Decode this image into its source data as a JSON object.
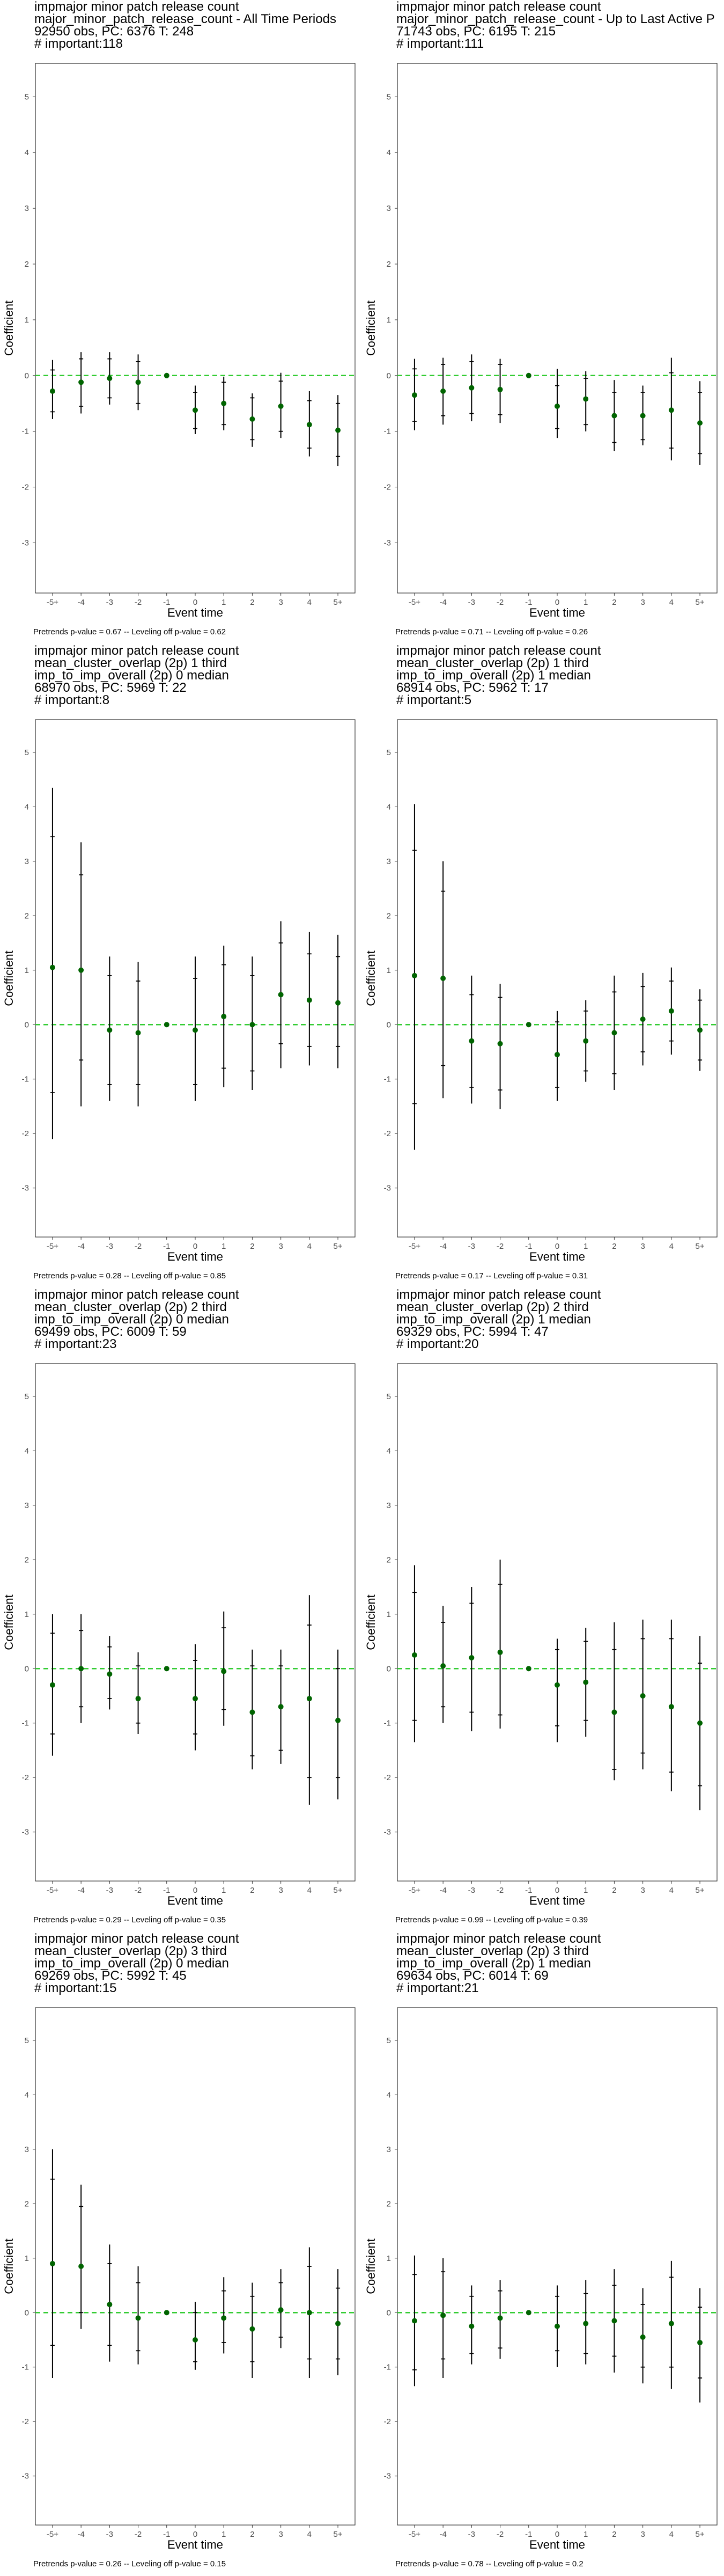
{
  "chart_data": [
    {
      "type": "scatter",
      "title": [
        "impmajor minor patch release count",
        "major_minor_patch_release_count - All Time Periods",
        "92950 obs, PC: 6376 T: 248",
        "# important:118"
      ],
      "xlabel": "Event time",
      "ylabel": "Coefficient",
      "caption": "Pretrends p-value = 0.67 -- Leveling off p-value = 0.62",
      "categories": [
        "-5+",
        "-4",
        "-3",
        "-2",
        "-1",
        "0",
        "1",
        "2",
        "3",
        "4",
        "5+"
      ],
      "estimate": [
        -0.28,
        -0.12,
        -0.05,
        -0.12,
        0.0,
        -0.62,
        -0.5,
        -0.78,
        -0.55,
        -0.88,
        -0.98
      ],
      "ci95_low": [
        -0.78,
        -0.68,
        -0.52,
        -0.62,
        0.0,
        -1.05,
        -0.98,
        -1.28,
        -1.12,
        -1.45,
        -1.62
      ],
      "ci95_high": [
        0.28,
        0.42,
        0.42,
        0.38,
        0.0,
        -0.18,
        -0.02,
        -0.32,
        0.05,
        -0.28,
        -0.35
      ],
      "ci_low": [
        -0.65,
        -0.55,
        -0.4,
        -0.5,
        0.0,
        -0.95,
        -0.88,
        -1.15,
        -1.0,
        -1.3,
        -1.45
      ],
      "ci_high": [
        0.1,
        0.3,
        0.3,
        0.25,
        0.0,
        -0.3,
        -0.12,
        -0.4,
        -0.1,
        -0.45,
        -0.5
      ],
      "ylim": [
        -3.9,
        5.6
      ],
      "yticks": [
        -3,
        -2,
        -1,
        0,
        1,
        2,
        3,
        4,
        5
      ],
      "reference_line": 0
    },
    {
      "type": "scatter",
      "title": [
        "impmajor minor patch release count",
        "major_minor_patch_release_count - Up to Last Active P",
        "71743 obs, PC: 6195 T: 215",
        "# important:111"
      ],
      "xlabel": "Event time",
      "ylabel": "Coefficient",
      "caption": "Pretrends p-value = 0.71 -- Leveling off p-value = 0.26",
      "categories": [
        "-5+",
        "-4",
        "-3",
        "-2",
        "-1",
        "0",
        "1",
        "2",
        "3",
        "4",
        "5+"
      ],
      "estimate": [
        -0.35,
        -0.28,
        -0.22,
        -0.25,
        0.0,
        -0.55,
        -0.42,
        -0.72,
        -0.72,
        -0.62,
        -0.85
      ],
      "ci95_low": [
        -0.98,
        -0.88,
        -0.82,
        -0.85,
        0.0,
        -1.12,
        -1.0,
        -1.35,
        -1.25,
        -1.52,
        -1.6
      ],
      "ci95_high": [
        0.3,
        0.32,
        0.38,
        0.3,
        0.0,
        0.12,
        0.08,
        -0.08,
        -0.18,
        0.32,
        -0.1
      ],
      "ci_low": [
        -0.82,
        -0.72,
        -0.68,
        -0.7,
        0.0,
        -0.95,
        -0.88,
        -1.2,
        -1.15,
        -1.3,
        -1.4
      ],
      "ci_high": [
        0.12,
        0.2,
        0.25,
        0.2,
        0.0,
        -0.18,
        -0.05,
        -0.3,
        -0.3,
        0.05,
        -0.3
      ],
      "ylim": [
        -3.9,
        5.6
      ],
      "yticks": [
        -3,
        -2,
        -1,
        0,
        1,
        2,
        3,
        4,
        5
      ],
      "reference_line": 0
    },
    {
      "type": "scatter",
      "title": [
        "impmajor minor patch release count",
        "mean_cluster_overlap (2p) 1 third",
        "imp_to_imp_overall (2p) 0 median",
        "68970 obs, PC: 5969 T: 22",
        "# important:8"
      ],
      "xlabel": "Event time",
      "ylabel": "Coefficient",
      "caption": "Pretrends p-value = 0.28 -- Leveling off p-value = 0.85",
      "categories": [
        "-5+",
        "-4",
        "-3",
        "-2",
        "-1",
        "0",
        "1",
        "2",
        "3",
        "4",
        "5+"
      ],
      "estimate": [
        1.05,
        1.0,
        -0.1,
        -0.15,
        0.0,
        -0.1,
        0.15,
        0.0,
        0.55,
        0.45,
        0.4
      ],
      "ci95_low": [
        -2.1,
        -1.5,
        -1.4,
        -1.5,
        0.0,
        -1.4,
        -1.15,
        -1.2,
        -0.8,
        -0.75,
        -0.8
      ],
      "ci95_high": [
        4.35,
        3.35,
        1.25,
        1.15,
        0.0,
        1.25,
        1.45,
        1.25,
        1.9,
        1.7,
        1.65
      ],
      "ci_low": [
        -1.25,
        -0.65,
        -1.1,
        -1.1,
        0.0,
        -1.1,
        -0.8,
        -0.85,
        -0.35,
        -0.4,
        -0.4
      ],
      "ci_high": [
        3.45,
        2.75,
        0.9,
        0.8,
        0.0,
        0.85,
        1.1,
        0.9,
        1.5,
        1.3,
        1.25
      ],
      "ylim": [
        -3.9,
        5.6
      ],
      "yticks": [
        -3,
        -2,
        -1,
        0,
        1,
        2,
        3,
        4,
        5
      ],
      "reference_line": 0
    },
    {
      "type": "scatter",
      "title": [
        "impmajor minor patch release count",
        "mean_cluster_overlap (2p) 1 third",
        "imp_to_imp_overall (2p) 1 median",
        "68914 obs, PC: 5962 T: 17",
        "# important:5"
      ],
      "xlabel": "Event time",
      "ylabel": "Coefficient",
      "caption": "Pretrends p-value = 0.17 -- Leveling off p-value = 0.31",
      "categories": [
        "-5+",
        "-4",
        "-3",
        "-2",
        "-1",
        "0",
        "1",
        "2",
        "3",
        "4",
        "5+"
      ],
      "estimate": [
        0.9,
        0.85,
        -0.3,
        -0.35,
        0.0,
        -0.55,
        -0.3,
        -0.15,
        0.1,
        0.25,
        -0.1
      ],
      "ci95_low": [
        -2.3,
        -1.35,
        -1.45,
        -1.55,
        0.0,
        -1.4,
        -1.05,
        -1.2,
        -0.75,
        -0.55,
        -0.85
      ],
      "ci95_high": [
        4.05,
        3.0,
        0.9,
        0.75,
        0.0,
        0.25,
        0.45,
        0.9,
        0.95,
        1.05,
        0.65
      ],
      "ci_low": [
        -1.45,
        -0.75,
        -1.15,
        -1.2,
        0.0,
        -1.15,
        -0.85,
        -0.9,
        -0.5,
        -0.3,
        -0.65
      ],
      "ci_high": [
        3.2,
        2.45,
        0.55,
        0.5,
        0.0,
        0.05,
        0.25,
        0.6,
        0.7,
        0.8,
        0.45
      ],
      "ylim": [
        -3.9,
        5.6
      ],
      "yticks": [
        -3,
        -2,
        -1,
        0,
        1,
        2,
        3,
        4,
        5
      ],
      "reference_line": 0
    },
    {
      "type": "scatter",
      "title": [
        "impmajor minor patch release count",
        "mean_cluster_overlap (2p) 2 third",
        "imp_to_imp_overall (2p) 0 median",
        "69499 obs, PC: 6009 T: 59",
        "# important:23"
      ],
      "xlabel": "Event time",
      "ylabel": "Coefficient",
      "caption": "Pretrends p-value = 0.29 -- Leveling off p-value = 0.35",
      "categories": [
        "-5+",
        "-4",
        "-3",
        "-2",
        "-1",
        "0",
        "1",
        "2",
        "3",
        "4",
        "5+"
      ],
      "estimate": [
        -0.3,
        0.0,
        -0.1,
        -0.55,
        0.0,
        -0.55,
        -0.05,
        -0.8,
        -0.7,
        -0.55,
        -0.95
      ],
      "ci95_low": [
        -1.6,
        -1.0,
        -0.75,
        -1.2,
        0.0,
        -1.5,
        -1.05,
        -1.85,
        -1.75,
        -2.5,
        -2.4
      ],
      "ci95_high": [
        1.0,
        1.0,
        0.6,
        0.3,
        0.0,
        0.45,
        1.05,
        0.35,
        0.35,
        1.35,
        0.35
      ],
      "ci_low": [
        -1.2,
        -0.7,
        -0.55,
        -1.0,
        0.0,
        -1.2,
        -0.75,
        -1.6,
        -1.5,
        -2.0,
        -2.0
      ],
      "ci_high": [
        0.65,
        0.7,
        0.4,
        0.05,
        0.0,
        0.15,
        0.75,
        0.05,
        0.05,
        0.8,
        0.0
      ],
      "ylim": [
        -3.9,
        5.6
      ],
      "yticks": [
        -3,
        -2,
        -1,
        0,
        1,
        2,
        3,
        4,
        5
      ],
      "reference_line": 0
    },
    {
      "type": "scatter",
      "title": [
        "impmajor minor patch release count",
        "mean_cluster_overlap (2p) 2 third",
        "imp_to_imp_overall (2p) 1 median",
        "69329 obs, PC: 5994 T: 47",
        "# important:20"
      ],
      "xlabel": "Event time",
      "ylabel": "Coefficient",
      "caption": "Pretrends p-value = 0.99 -- Leveling off p-value = 0.39",
      "categories": [
        "-5+",
        "-4",
        "-3",
        "-2",
        "-1",
        "0",
        "1",
        "2",
        "3",
        "4",
        "5+"
      ],
      "estimate": [
        0.25,
        0.05,
        0.2,
        0.3,
        0.0,
        -0.3,
        -0.25,
        -0.8,
        -0.5,
        -0.7,
        -1.0
      ],
      "ci95_low": [
        -1.35,
        -1.0,
        -1.15,
        -1.1,
        0.0,
        -1.35,
        -1.25,
        -2.05,
        -1.85,
        -2.25,
        -2.6
      ],
      "ci95_high": [
        1.9,
        1.15,
        1.5,
        2.0,
        0.0,
        0.55,
        0.75,
        0.85,
        0.9,
        0.9,
        0.6
      ],
      "ci_low": [
        -0.95,
        -0.7,
        -0.8,
        -0.85,
        0.0,
        -1.05,
        -0.95,
        -1.85,
        -1.55,
        -1.9,
        -2.15
      ],
      "ci_high": [
        1.4,
        0.85,
        1.2,
        1.55,
        0.0,
        0.35,
        0.5,
        0.35,
        0.55,
        0.55,
        0.1
      ],
      "ylim": [
        -3.9,
        5.6
      ],
      "yticks": [
        -3,
        -2,
        -1,
        0,
        1,
        2,
        3,
        4,
        5
      ],
      "reference_line": 0
    },
    {
      "type": "scatter",
      "title": [
        "impmajor minor patch release count",
        "mean_cluster_overlap (2p) 3 third",
        "imp_to_imp_overall (2p) 0 median",
        "69269 obs, PC: 5992 T: 45",
        "# important:15"
      ],
      "xlabel": "Event time",
      "ylabel": "Coefficient",
      "caption": "Pretrends p-value = 0.26 -- Leveling off p-value = 0.15",
      "categories": [
        "-5+",
        "-4",
        "-3",
        "-2",
        "-1",
        "0",
        "1",
        "2",
        "3",
        "4",
        "5+"
      ],
      "estimate": [
        0.9,
        0.85,
        0.15,
        -0.1,
        0.0,
        -0.5,
        -0.1,
        -0.3,
        0.05,
        0.0,
        -0.2
      ],
      "ci95_low": [
        -1.2,
        -0.3,
        -0.9,
        -0.95,
        0.0,
        -1.05,
        -0.75,
        -1.2,
        -0.65,
        -1.2,
        -1.15
      ],
      "ci95_high": [
        3.0,
        2.35,
        1.25,
        0.85,
        0.0,
        0.2,
        0.65,
        0.55,
        0.8,
        1.2,
        0.8
      ],
      "ci_low": [
        -0.6,
        0.0,
        -0.6,
        -0.7,
        0.0,
        -0.9,
        -0.55,
        -0.9,
        -0.45,
        -0.85,
        -0.85
      ],
      "ci_high": [
        2.45,
        1.95,
        0.9,
        0.55,
        0.0,
        0.0,
        0.4,
        0.3,
        0.55,
        0.85,
        0.45
      ],
      "ylim": [
        -3.9,
        5.6
      ],
      "yticks": [
        -3,
        -2,
        -1,
        0,
        1,
        2,
        3,
        4,
        5
      ],
      "reference_line": 0
    },
    {
      "type": "scatter",
      "title": [
        "impmajor minor patch release count",
        "mean_cluster_overlap (2p) 3 third",
        "imp_to_imp_overall (2p) 1 median",
        "69634 obs, PC: 6014 T: 69",
        "# important:21"
      ],
      "xlabel": "Event time",
      "ylabel": "Coefficient",
      "caption": "Pretrends p-value = 0.78 -- Leveling off p-value = 0.2",
      "categories": [
        "-5+",
        "-4",
        "-3",
        "-2",
        "-1",
        "0",
        "1",
        "2",
        "3",
        "4",
        "5+"
      ],
      "estimate": [
        -0.15,
        -0.05,
        -0.25,
        -0.1,
        0.0,
        -0.25,
        -0.2,
        -0.15,
        -0.45,
        -0.2,
        -0.55
      ],
      "ci95_low": [
        -1.35,
        -1.2,
        -0.95,
        -0.85,
        0.0,
        -1.0,
        -0.95,
        -1.1,
        -1.3,
        -1.4,
        -1.65
      ],
      "ci95_high": [
        1.05,
        1.0,
        0.5,
        0.6,
        0.0,
        0.5,
        0.6,
        0.8,
        0.45,
        0.95,
        0.45
      ],
      "ci_low": [
        -1.05,
        -0.85,
        -0.75,
        -0.65,
        0.0,
        -0.7,
        -0.75,
        -0.8,
        -1.0,
        -1.0,
        -1.2
      ],
      "ci_high": [
        0.7,
        0.75,
        0.3,
        0.4,
        0.0,
        0.3,
        0.35,
        0.5,
        0.15,
        0.65,
        0.1
      ],
      "ylim": [
        -3.9,
        5.6
      ],
      "yticks": [
        -3,
        -2,
        -1,
        0,
        1,
        2,
        3,
        4,
        5
      ],
      "reference_line": 0
    }
  ],
  "colors": {
    "point": "#006400",
    "reference_line": "#33cc33",
    "error_bar": "#000000",
    "panel_border": "#333333",
    "tick_text": "#4d4d4d"
  }
}
